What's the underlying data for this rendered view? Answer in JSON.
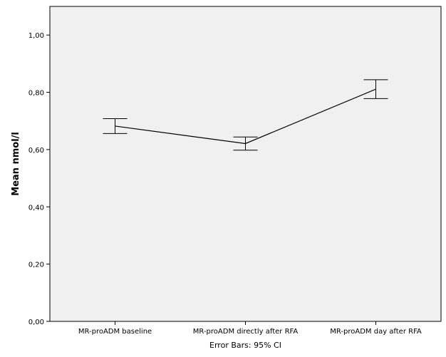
{
  "chart_data": {
    "type": "line",
    "title": "",
    "xlabel": "",
    "ylabel": "Mean nmol/l",
    "footer": "Error Bars: 95% CI",
    "categories": [
      "MR-proADM baseline",
      "MR-proADM directly after RFA",
      "MR-proADM day after RFA"
    ],
    "series": [
      {
        "values": [
          0.682,
          0.621,
          0.811
        ],
        "ci_lower": [
          0.656,
          0.598,
          0.778
        ],
        "ci_upper": [
          0.708,
          0.644,
          0.844
        ]
      }
    ],
    "ylim": [
      0,
      1.1
    ],
    "yticks": [
      0,
      0.2,
      0.4,
      0.6,
      0.8,
      1.0
    ],
    "ytick_labels": [
      "0,00",
      "0,20",
      "0,40",
      "0,60",
      "0,80",
      "1,00"
    ],
    "grid": false,
    "colors": {
      "plot_bg": "#f0f0f0",
      "line": "#000000",
      "frame": "#000000"
    }
  }
}
